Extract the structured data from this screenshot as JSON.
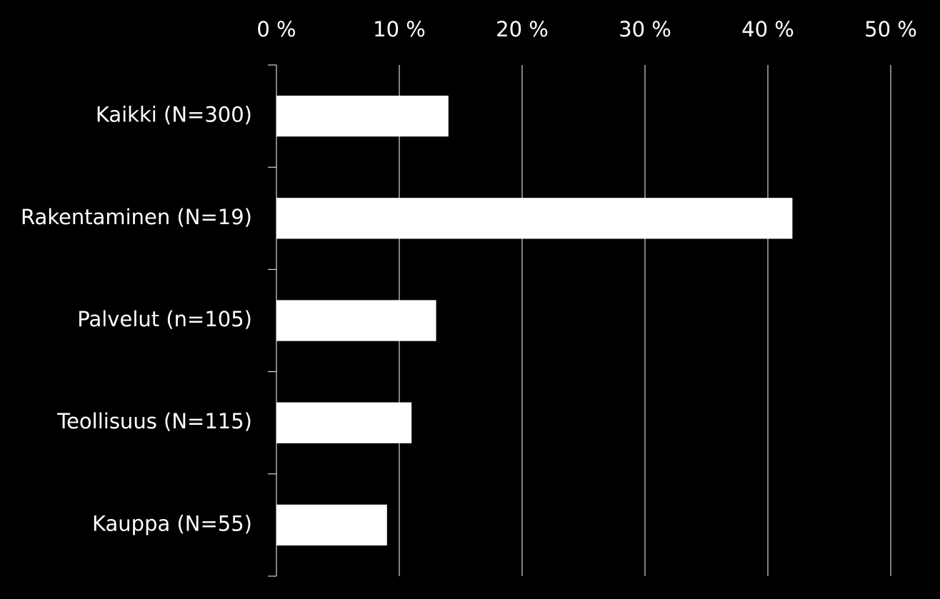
{
  "chart_data": {
    "type": "hbar",
    "categories": [
      "Kaikki (N=300)",
      "Rakentaminen (N=19)",
      "Palvelut (n=105)",
      "Teollisuus (N=115)",
      "Kauppa (N=55)"
    ],
    "values": [
      14,
      42,
      13,
      11,
      9
    ],
    "color": "#ffffff",
    "xlim": [
      0,
      50
    ],
    "xticks": [
      {
        "value": 0,
        "label": "0 %"
      },
      {
        "value": 10,
        "label": "10 %"
      },
      {
        "value": 20,
        "label": "20 %"
      },
      {
        "value": 30,
        "label": "30 %"
      },
      {
        "value": 40,
        "label": "40 %"
      },
      {
        "value": 50,
        "label": "50 %"
      }
    ],
    "grid": true
  }
}
